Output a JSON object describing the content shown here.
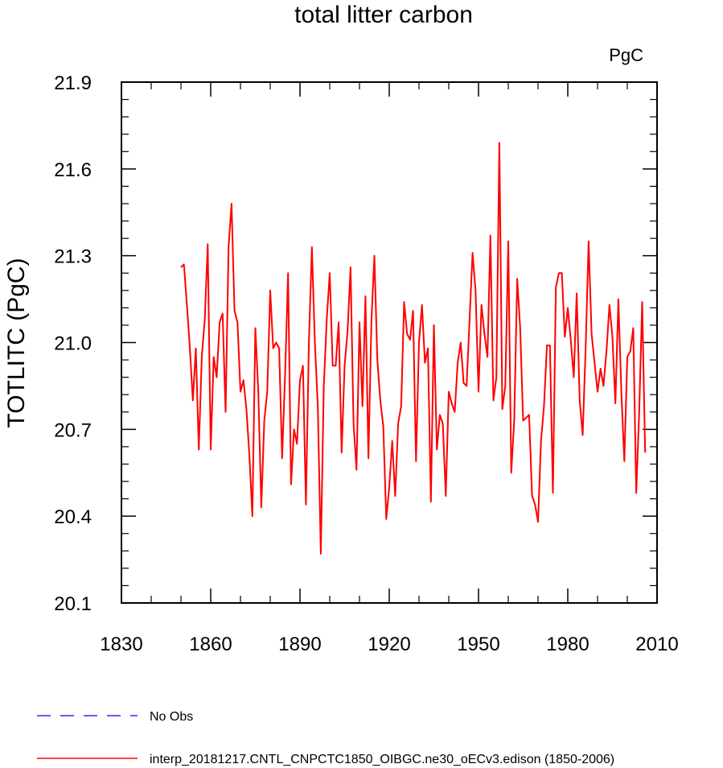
{
  "chart_data": {
    "type": "line",
    "title": "total litter carbon",
    "units_label": "PgC",
    "xlabel": "",
    "ylabel": "TOTLITC  (PgC)",
    "xlim": [
      1830,
      2010
    ],
    "ylim": [
      20.1,
      21.9
    ],
    "x_ticks": [
      1830,
      1860,
      1890,
      1920,
      1950,
      1980,
      2010
    ],
    "x_tick_labels": [
      "1830",
      "1860",
      "1890",
      "1920",
      "1950",
      "1980",
      "2010"
    ],
    "y_ticks": [
      20.1,
      20.4,
      20.7,
      21.0,
      21.3,
      21.6,
      21.9
    ],
    "y_tick_labels": [
      "20.1",
      "20.4",
      "20.7",
      "21.0",
      "21.3",
      "21.6",
      "21.9"
    ],
    "grid": false,
    "legend_position": "bottom-left",
    "series": [
      {
        "name": "No Obs",
        "color": "#0000ff",
        "style": "dashed",
        "x": [],
        "values": []
      },
      {
        "name": "interp_20181217.CNTL_CNPCTC1850_OIBGC.ne30_oECv3.edison (1850-2006)",
        "color": "#ff0000",
        "style": "solid",
        "x": [
          1850,
          1851,
          1852,
          1853,
          1854,
          1855,
          1856,
          1857,
          1858,
          1859,
          1860,
          1861,
          1862,
          1863,
          1864,
          1865,
          1866,
          1867,
          1868,
          1869,
          1870,
          1871,
          1872,
          1873,
          1874,
          1875,
          1876,
          1877,
          1878,
          1879,
          1880,
          1881,
          1882,
          1883,
          1884,
          1885,
          1886,
          1887,
          1888,
          1889,
          1890,
          1891,
          1892,
          1893,
          1894,
          1895,
          1896,
          1897,
          1898,
          1899,
          1900,
          1901,
          1902,
          1903,
          1904,
          1905,
          1906,
          1907,
          1908,
          1909,
          1910,
          1911,
          1912,
          1913,
          1914,
          1915,
          1916,
          1917,
          1918,
          1919,
          1920,
          1921,
          1922,
          1923,
          1924,
          1925,
          1926,
          1927,
          1928,
          1929,
          1930,
          1931,
          1932,
          1933,
          1934,
          1935,
          1936,
          1937,
          1938,
          1939,
          1940,
          1941,
          1942,
          1943,
          1944,
          1945,
          1946,
          1947,
          1948,
          1949,
          1950,
          1951,
          1952,
          1953,
          1954,
          1955,
          1956,
          1957,
          1958,
          1959,
          1960,
          1961,
          1962,
          1963,
          1964,
          1965,
          1966,
          1967,
          1968,
          1969,
          1970,
          1971,
          1972,
          1973,
          1974,
          1975,
          1976,
          1977,
          1978,
          1979,
          1980,
          1981,
          1982,
          1983,
          1984,
          1985,
          1986,
          1987,
          1988,
          1989,
          1990,
          1991,
          1992,
          1993,
          1994,
          1995,
          1996,
          1997,
          1998,
          1999,
          2000,
          2001,
          2002,
          2003,
          2004,
          2005,
          2006
        ],
        "values": [
          21.26,
          21.27,
          21.13,
          20.98,
          20.8,
          20.98,
          20.63,
          20.95,
          21.08,
          21.34,
          20.63,
          20.95,
          20.88,
          21.07,
          21.1,
          20.76,
          21.33,
          21.48,
          21.11,
          21.07,
          20.83,
          20.87,
          20.77,
          20.61,
          20.4,
          21.05,
          20.83,
          20.43,
          20.73,
          20.83,
          21.18,
          20.98,
          21.0,
          20.98,
          20.6,
          20.89,
          21.24,
          20.51,
          20.7,
          20.65,
          20.87,
          20.92,
          20.44,
          21.0,
          21.33,
          21.0,
          20.78,
          20.27,
          20.85,
          21.08,
          21.24,
          20.92,
          20.92,
          21.07,
          20.62,
          20.92,
          21.04,
          21.26,
          20.72,
          20.56,
          21.07,
          20.78,
          21.16,
          20.6,
          21.07,
          21.3,
          20.94,
          20.8,
          20.71,
          20.39,
          20.5,
          20.66,
          20.47,
          20.72,
          20.78,
          21.14,
          21.03,
          21.01,
          21.11,
          20.59,
          21.0,
          21.13,
          20.93,
          20.98,
          20.45,
          21.06,
          20.63,
          20.75,
          20.72,
          20.47,
          20.83,
          20.79,
          20.76,
          20.93,
          21.0,
          20.86,
          20.85,
          21.08,
          21.31,
          21.18,
          20.83,
          21.13,
          21.03,
          20.95,
          21.37,
          20.8,
          20.88,
          21.69,
          20.77,
          20.85,
          21.35,
          20.55,
          20.73,
          21.22,
          21.05,
          20.73,
          20.74,
          20.75,
          20.47,
          20.44,
          20.38,
          20.66,
          20.78,
          20.99,
          20.99,
          20.48,
          21.19,
          21.24,
          21.24,
          21.02,
          21.12,
          21.01,
          20.88,
          21.17,
          20.8,
          20.68,
          20.98,
          21.35,
          21.03,
          20.93,
          20.83,
          20.91,
          20.85,
          20.97,
          21.13,
          21.02,
          20.79,
          21.15,
          20.83,
          20.59,
          20.95,
          20.97,
          21.05,
          20.48,
          20.76,
          21.14,
          20.62
        ]
      }
    ]
  }
}
